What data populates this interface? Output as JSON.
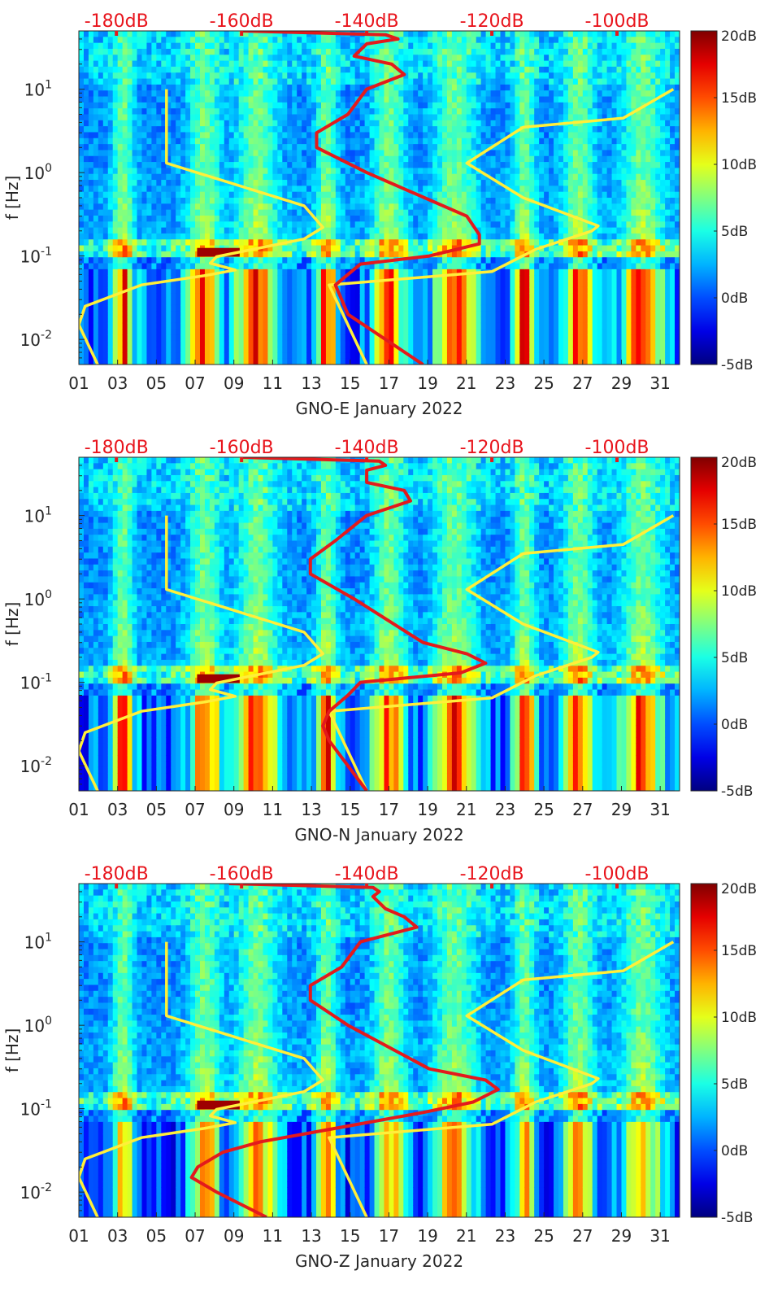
{
  "chart_data": [
    {
      "type": "heatmap",
      "station": "GNO-E",
      "xlabel": "GNO-E January 2022",
      "ylabel": "f [Hz]",
      "x_ticks": [
        "01",
        "03",
        "05",
        "07",
        "09",
        "11",
        "13",
        "15",
        "17",
        "19",
        "21",
        "23",
        "25",
        "27",
        "29",
        "31"
      ],
      "x_range_days": [
        1,
        32
      ],
      "y_scale": "log",
      "y_range_hz": [
        0.005,
        50
      ],
      "y_ticks": [
        {
          "base": "10",
          "exp": "-2"
        },
        {
          "base": "10",
          "exp": "-1"
        },
        {
          "base": "10",
          "exp": "0"
        },
        {
          "base": "10",
          "exp": "1"
        }
      ],
      "top_axis_labels": [
        "-180dB",
        "-160dB",
        "-140dB",
        "-120dB",
        "-100dB"
      ],
      "top_axis_range_db": [
        -186,
        -90
      ],
      "colorbar": {
        "range_db": [
          -5,
          20
        ],
        "ticks": [
          "20dB",
          "15dB",
          "10dB",
          "5dB",
          "0dB",
          "-5dB"
        ],
        "colormap": "jet"
      },
      "reference_curves": {
        "low_noise_model": {
          "name": "yellow-left",
          "color": "#ffef3a",
          "points_db_hz": [
            [
              -183,
              0.005
            ],
            [
              -186,
              0.015
            ],
            [
              -185,
              0.025
            ],
            [
              -176,
              0.045
            ],
            [
              -166,
              0.058
            ],
            [
              -161,
              0.068
            ],
            [
              -165,
              0.082
            ],
            [
              -164,
              0.098
            ],
            [
              -150,
              0.16
            ],
            [
              -147,
              0.22
            ],
            [
              -150,
              0.4
            ],
            [
              -172,
              1.3
            ],
            [
              -172,
              10
            ]
          ]
        },
        "high_noise_model": {
          "name": "yellow-right",
          "color": "#ffef3a",
          "points_db_hz": [
            [
              -140,
              0.005
            ],
            [
              -146,
              0.045
            ],
            [
              -120,
              0.065
            ],
            [
              -113,
              0.12
            ],
            [
              -104,
              0.2
            ],
            [
              -103,
              0.23
            ],
            [
              -115,
              0.5
            ],
            [
              -124,
              1.3
            ],
            [
              -115,
              3.5
            ],
            [
              -99,
              4.5
            ],
            [
              -91,
              10
            ]
          ]
        },
        "station_noise_percentile": {
          "name": "red",
          "color": "#e31a1c",
          "points_db_hz": [
            [
              -131,
              0.005
            ],
            [
              -143,
              0.02
            ],
            [
              -145,
              0.045
            ],
            [
              -141,
              0.08
            ],
            [
              -130,
              0.1
            ],
            [
              -122,
              0.14
            ],
            [
              -122,
              0.18
            ],
            [
              -124,
              0.3
            ],
            [
              -140,
              1
            ],
            [
              -148,
              2
            ],
            [
              -148,
              3
            ],
            [
              -143,
              5
            ],
            [
              -140,
              10
            ],
            [
              -134,
              15
            ],
            [
              -136,
              20
            ],
            [
              -142,
              25
            ],
            [
              -140,
              35
            ],
            [
              -135,
              40
            ],
            [
              -137,
              45
            ],
            [
              -160,
              50
            ]
          ]
        }
      }
    },
    {
      "type": "heatmap",
      "station": "GNO-N",
      "xlabel": "GNO-N January 2022",
      "ylabel": "f [Hz]",
      "x_ticks": [
        "01",
        "03",
        "05",
        "07",
        "09",
        "11",
        "13",
        "15",
        "17",
        "19",
        "21",
        "23",
        "25",
        "27",
        "29",
        "31"
      ],
      "x_range_days": [
        1,
        32
      ],
      "y_scale": "log",
      "y_range_hz": [
        0.005,
        50
      ],
      "y_ticks": [
        {
          "base": "10",
          "exp": "-2"
        },
        {
          "base": "10",
          "exp": "-1"
        },
        {
          "base": "10",
          "exp": "0"
        },
        {
          "base": "10",
          "exp": "1"
        }
      ],
      "top_axis_labels": [
        "-180dB",
        "-160dB",
        "-140dB",
        "-120dB",
        "-100dB"
      ],
      "top_axis_range_db": [
        -186,
        -90
      ],
      "colorbar": {
        "range_db": [
          -5,
          20
        ],
        "ticks": [
          "20dB",
          "15dB",
          "10dB",
          "5dB",
          "0dB",
          "-5dB"
        ],
        "colormap": "jet"
      },
      "reference_curves": {
        "low_noise_model": {
          "name": "yellow-left",
          "color": "#ffef3a",
          "points_db_hz": [
            [
              -183,
              0.005
            ],
            [
              -186,
              0.015
            ],
            [
              -185,
              0.025
            ],
            [
              -176,
              0.045
            ],
            [
              -166,
              0.058
            ],
            [
              -161,
              0.068
            ],
            [
              -165,
              0.082
            ],
            [
              -164,
              0.098
            ],
            [
              -150,
              0.16
            ],
            [
              -147,
              0.22
            ],
            [
              -150,
              0.4
            ],
            [
              -172,
              1.3
            ],
            [
              -172,
              10
            ]
          ]
        },
        "high_noise_model": {
          "name": "yellow-right",
          "color": "#ffef3a",
          "points_db_hz": [
            [
              -140,
              0.005
            ],
            [
              -146,
              0.045
            ],
            [
              -120,
              0.065
            ],
            [
              -113,
              0.12
            ],
            [
              -104,
              0.2
            ],
            [
              -103,
              0.23
            ],
            [
              -115,
              0.5
            ],
            [
              -124,
              1.3
            ],
            [
              -115,
              3.5
            ],
            [
              -99,
              4.5
            ],
            [
              -91,
              10
            ]
          ]
        },
        "station_noise_percentile": {
          "name": "red",
          "color": "#e31a1c",
          "points_db_hz": [
            [
              -140,
              0.005
            ],
            [
              -146,
              0.02
            ],
            [
              -147,
              0.03
            ],
            [
              -146,
              0.045
            ],
            [
              -143,
              0.07
            ],
            [
              -141,
              0.1
            ],
            [
              -125,
              0.13
            ],
            [
              -121,
              0.17
            ],
            [
              -124,
              0.22
            ],
            [
              -131,
              0.3
            ],
            [
              -142,
              1
            ],
            [
              -149,
              2
            ],
            [
              -149,
              3
            ],
            [
              -145,
              5
            ],
            [
              -140,
              10
            ],
            [
              -133,
              15
            ],
            [
              -134,
              20
            ],
            [
              -140,
              25
            ],
            [
              -140,
              35
            ],
            [
              -137,
              40
            ],
            [
              -138,
              45
            ],
            [
              -160,
              50
            ]
          ]
        }
      }
    },
    {
      "type": "heatmap",
      "station": "GNO-Z",
      "xlabel": "GNO-Z January 2022",
      "ylabel": "f [Hz]",
      "x_ticks": [
        "01",
        "03",
        "05",
        "07",
        "09",
        "11",
        "13",
        "15",
        "17",
        "19",
        "21",
        "23",
        "25",
        "27",
        "29",
        "31"
      ],
      "x_range_days": [
        1,
        32
      ],
      "y_scale": "log",
      "y_range_hz": [
        0.005,
        50
      ],
      "y_ticks": [
        {
          "base": "10",
          "exp": "-2"
        },
        {
          "base": "10",
          "exp": "-1"
        },
        {
          "base": "10",
          "exp": "0"
        },
        {
          "base": "10",
          "exp": "1"
        }
      ],
      "top_axis_labels": [
        "-180dB",
        "-160dB",
        "-140dB",
        "-120dB",
        "-100dB"
      ],
      "top_axis_range_db": [
        -186,
        -90
      ],
      "colorbar": {
        "range_db": [
          -5,
          20
        ],
        "ticks": [
          "20dB",
          "15dB",
          "10dB",
          "5dB",
          "0dB",
          "-5dB"
        ],
        "colormap": "jet"
      },
      "reference_curves": {
        "low_noise_model": {
          "name": "yellow-left",
          "color": "#ffef3a",
          "points_db_hz": [
            [
              -183,
              0.005
            ],
            [
              -186,
              0.015
            ],
            [
              -185,
              0.025
            ],
            [
              -176,
              0.045
            ],
            [
              -166,
              0.058
            ],
            [
              -161,
              0.068
            ],
            [
              -165,
              0.082
            ],
            [
              -164,
              0.098
            ],
            [
              -150,
              0.16
            ],
            [
              -147,
              0.22
            ],
            [
              -150,
              0.4
            ],
            [
              -172,
              1.3
            ],
            [
              -172,
              10
            ]
          ]
        },
        "high_noise_model": {
          "name": "yellow-right",
          "color": "#ffef3a",
          "points_db_hz": [
            [
              -140,
              0.005
            ],
            [
              -146,
              0.045
            ],
            [
              -120,
              0.065
            ],
            [
              -113,
              0.12
            ],
            [
              -104,
              0.2
            ],
            [
              -103,
              0.23
            ],
            [
              -115,
              0.5
            ],
            [
              -124,
              1.3
            ],
            [
              -115,
              3.5
            ],
            [
              -99,
              4.5
            ],
            [
              -91,
              10
            ]
          ]
        },
        "station_noise_percentile": {
          "name": "red",
          "color": "#e31a1c",
          "points_db_hz": [
            [
              -156,
              0.005
            ],
            [
              -164,
              0.01
            ],
            [
              -168,
              0.015
            ],
            [
              -167,
              0.02
            ],
            [
              -163,
              0.03
            ],
            [
              -157,
              0.04
            ],
            [
              -144,
              0.06
            ],
            [
              -131,
              0.09
            ],
            [
              -123,
              0.12
            ],
            [
              -119,
              0.17
            ],
            [
              -121,
              0.22
            ],
            [
              -130,
              0.3
            ],
            [
              -143,
              1
            ],
            [
              -149,
              2
            ],
            [
              -149,
              3
            ],
            [
              -144,
              5
            ],
            [
              -141,
              10
            ],
            [
              -132,
              15
            ],
            [
              -134,
              20
            ],
            [
              -137,
              25
            ],
            [
              -139,
              35
            ],
            [
              -138,
              40
            ],
            [
              -139,
              45
            ],
            [
              -162,
              50
            ]
          ]
        }
      }
    }
  ]
}
